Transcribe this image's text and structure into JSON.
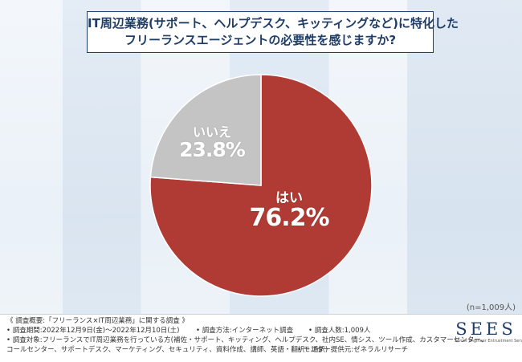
{
  "title": {
    "line1": "IT周辺業務(サポート、ヘルプデスク、キッティングなど)に特化した",
    "line2": "フリーランスエージェントの必要性を感じますか?"
  },
  "chart_data": {
    "type": "pie",
    "slices": [
      {
        "label": "はい",
        "value": 76.2,
        "display": "76.2%",
        "color": "#b03a34"
      },
      {
        "label": "いいえ",
        "value": 23.8,
        "display": "23.8%",
        "color": "#c4c4c4"
      }
    ],
    "start": "12 o'clock, counter-clockwise for いいえ",
    "note": "(n=1,009人)"
  },
  "footer": {
    "overview": "《 調査概要:「フリーランス×IT周辺業務」に関する調査 》",
    "period": "• 調査期間:2022年12月9日(金)〜2022年12月10日(土)",
    "method": "• 調査方法:インターネット調査",
    "count": "• 調査人数:1,009人",
    "target": "• 調査対象:フリーランスでIT周辺業務を行っている方(補佐・サポート、キッティング、ヘルプデスク、社内SE、情シス、ツール作成、カスタマーセンター、",
    "target2": "コールセンター、サポートデスク、マーケティング、セキュリティ、資料作成、講師、英語・翻訳・通訳)",
    "provider": "• モニター提供元:ゼネラルリサーチ"
  },
  "logo": {
    "name": "SEES",
    "tagline": "Senior Engineer Entrustment Service"
  },
  "colors": {
    "title": "#1f3d66",
    "yes": "#b03a34",
    "no": "#c4c4c4"
  }
}
